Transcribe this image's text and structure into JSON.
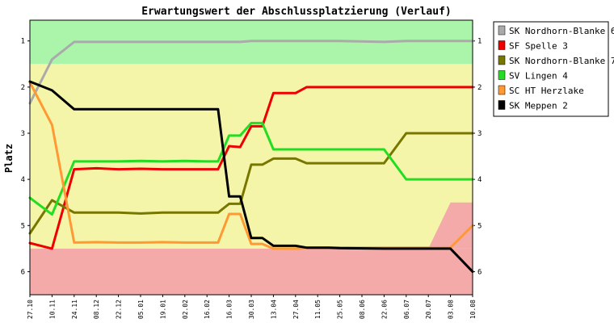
{
  "chart_data": {
    "type": "line",
    "title": "Erwartungswert der Abschlussplatzierung (Verlauf)",
    "xlabel": "",
    "ylabel": "Platz",
    "ylim": [
      0.55,
      6.5
    ],
    "y_inverted": true,
    "yticks": [
      1,
      2,
      3,
      4,
      5,
      6
    ],
    "grid": false,
    "legend_position": "right",
    "bands": [
      {
        "from": 0.55,
        "to": 1.5,
        "color": "#aaf5aa"
      },
      {
        "from": 1.5,
        "to": 5.5,
        "color": "#f5f5aa"
      },
      {
        "from": 5.5,
        "to": 6.5,
        "color": "#f5aaaa"
      }
    ],
    "band_ramp": {
      "from_category": "20.07",
      "to_category": "03.08",
      "boundary_from": 5.5,
      "boundary_to": 4.5
    },
    "categories": [
      "27.10",
      "10.11",
      "24.11",
      "08.12",
      "22.12",
      "05.01",
      "19.01",
      "02.02",
      "16.02",
      "16.03",
      "30.03",
      "13.04",
      "27.04",
      "11.05",
      "25.05",
      "08.06",
      "22.06",
      "06.07",
      "20.07",
      "03.08",
      "10.08"
    ],
    "x": [
      0,
      1,
      2,
      3,
      4,
      5,
      6,
      7,
      8,
      9,
      10,
      11,
      12,
      13,
      14,
      15,
      16,
      17,
      18,
      19,
      20
    ],
    "x_values": [
      0,
      1,
      2,
      3,
      4,
      5,
      6,
      7,
      8,
      9.3,
      10.3,
      11.3,
      12.3,
      13.3,
      14.3,
      15.3,
      16.3,
      17.3,
      18.3,
      19.3,
      20.3,
      21.3,
      22.3,
      23.3,
      24.3
    ],
    "x_positions_note": "",
    "point_categories": [
      0,
      1,
      2,
      3,
      4,
      5,
      6,
      7,
      8,
      8.5,
      9,
      9.5,
      10,
      10.5,
      11,
      11.5,
      12,
      12.5,
      13,
      13.5,
      14,
      16,
      17,
      19,
      20
    ],
    "series": [
      {
        "name": "SK Nordhorn-Blanke 6",
        "color": "#aaaaaa",
        "values": [
          2.35,
          1.4,
          1.02,
          1.02,
          1.02,
          1.02,
          1.02,
          1.02,
          1.02,
          1.02,
          1.02,
          1.02,
          1.0,
          1.0,
          1.0,
          1.0,
          1.0,
          1.0,
          1.0,
          1.0,
          1.0,
          1.02,
          1.0,
          1.0,
          1.0
        ]
      },
      {
        "name": "SF Spelle 3",
        "color": "#ee0000",
        "values": [
          5.38,
          5.5,
          3.78,
          3.76,
          3.78,
          3.77,
          3.78,
          3.78,
          3.78,
          3.78,
          3.28,
          3.3,
          2.85,
          2.85,
          2.13,
          2.13,
          2.13,
          2.0,
          2.0,
          2.0,
          2.0,
          2.0,
          2.0,
          2.0,
          2.0
        ]
      },
      {
        "name": "SK Nordhorn-Blanke 7",
        "color": "#777700",
        "values": [
          5.17,
          4.45,
          4.72,
          4.72,
          4.72,
          4.74,
          4.72,
          4.72,
          4.72,
          4.72,
          4.53,
          4.53,
          3.68,
          3.68,
          3.55,
          3.55,
          3.55,
          3.65,
          3.65,
          3.65,
          3.65,
          3.65,
          3.0,
          3.0,
          3.0
        ]
      },
      {
        "name": "SV Lingen 4",
        "color": "#22dd22",
        "values": [
          4.4,
          4.76,
          3.61,
          3.61,
          3.61,
          3.6,
          3.61,
          3.6,
          3.61,
          3.61,
          3.05,
          3.05,
          2.78,
          2.78,
          3.35,
          3.35,
          3.35,
          3.35,
          3.35,
          3.35,
          3.35,
          3.35,
          4.0,
          4.0,
          4.0
        ]
      },
      {
        "name": "SC HT Herzlake",
        "color": "#ff9933",
        "values": [
          1.9,
          2.82,
          5.37,
          5.36,
          5.37,
          5.37,
          5.36,
          5.37,
          5.37,
          5.37,
          4.75,
          4.75,
          5.4,
          5.4,
          5.5,
          5.5,
          5.5,
          5.48,
          5.48,
          5.48,
          5.48,
          5.48,
          5.48,
          5.48,
          5.0
        ]
      },
      {
        "name": "SK Meppen 2",
        "color": "#000000",
        "values": [
          1.88,
          2.07,
          2.48,
          2.48,
          2.48,
          2.48,
          2.48,
          2.48,
          2.48,
          2.48,
          4.37,
          4.37,
          5.27,
          5.27,
          5.44,
          5.44,
          5.44,
          5.48,
          5.48,
          5.48,
          5.49,
          5.5,
          5.5,
          5.5,
          6.0
        ]
      }
    ]
  }
}
